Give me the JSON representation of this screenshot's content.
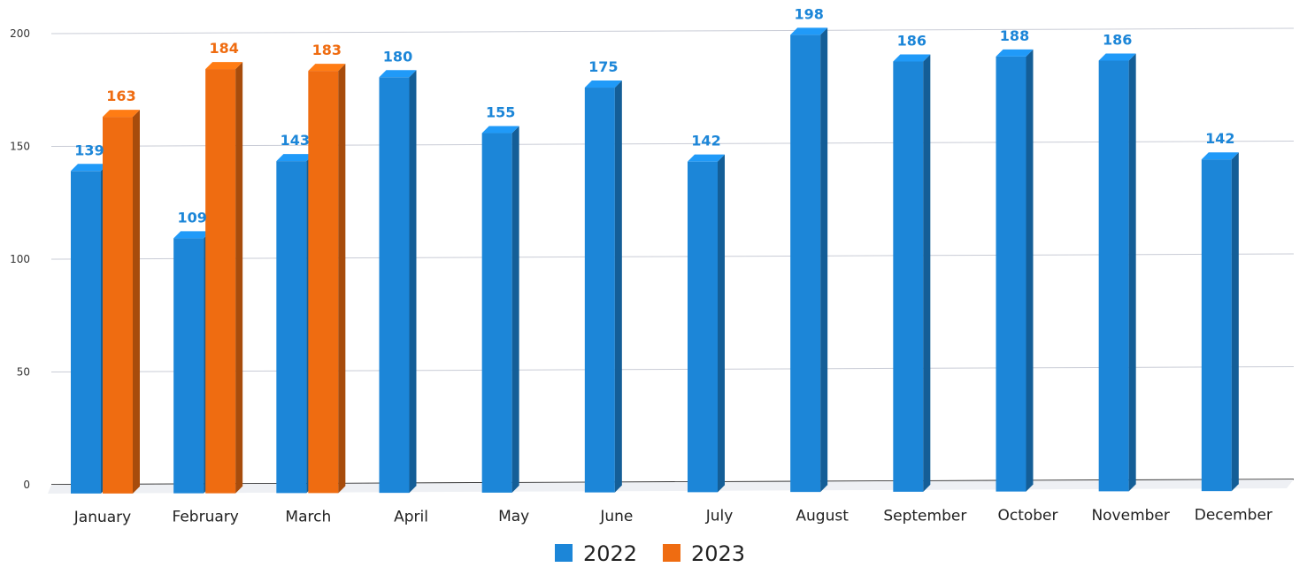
{
  "chart_data": {
    "type": "bar",
    "title": "",
    "xlabel": "",
    "ylabel": "",
    "ylim": [
      0,
      200
    ],
    "yticks": [
      0,
      50,
      100,
      150,
      200
    ],
    "grid": true,
    "legend_position": "bottom",
    "categories": [
      "January",
      "February",
      "March",
      "April",
      "May",
      "June",
      "July",
      "August",
      "September",
      "October",
      "November",
      "December"
    ],
    "series": [
      {
        "name": "2022",
        "color": "#1c86d8",
        "values": [
          139,
          109,
          143,
          180,
          155,
          175,
          142,
          198,
          186,
          188,
          186,
          142
        ]
      },
      {
        "name": "2023",
        "color": "#ef6c11",
        "values": [
          163,
          184,
          183,
          null,
          null,
          null,
          null,
          null,
          null,
          null,
          null,
          null
        ]
      }
    ]
  }
}
